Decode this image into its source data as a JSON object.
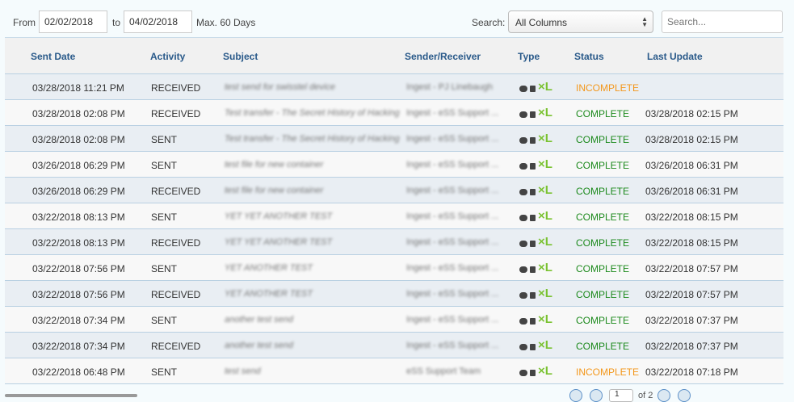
{
  "filter": {
    "from_label": "From",
    "from_value": "02/02/2018",
    "to_label": "to",
    "to_value": "04/02/2018",
    "max_label": "Max. 60 Days",
    "search_label": "Search:",
    "search_column": "All Columns",
    "search_placeholder": "Search..."
  },
  "columns": [
    "Sent Date",
    "Activity",
    "Subject",
    "Sender/Receiver",
    "Type",
    "Status",
    "Last Update"
  ],
  "colors": {
    "header": "#2a5a8a",
    "complete": "#1d8a1d",
    "incomplete": "#f3971b",
    "xl_icon": "#7ac231"
  },
  "rows": [
    {
      "sent": "03/28/2018 11:21 PM",
      "activity": "RECEIVED",
      "subject": "test send for swisstel device",
      "sender": "Ingest - PJ Linebaugh",
      "status": "INCOMPLETE",
      "updated": ""
    },
    {
      "sent": "03/28/2018 02:08 PM",
      "activity": "RECEIVED",
      "subject": "Test transfer - The Secret History of Hacking",
      "sender": "Ingest - eSS Support ...",
      "status": "COMPLETE",
      "updated": "03/28/2018 02:15 PM"
    },
    {
      "sent": "03/28/2018 02:08 PM",
      "activity": "SENT",
      "subject": "Test transfer - The Secret History of Hacking",
      "sender": "Ingest - eSS Support ...",
      "status": "COMPLETE",
      "updated": "03/28/2018 02:15 PM"
    },
    {
      "sent": "03/26/2018 06:29 PM",
      "activity": "SENT",
      "subject": "test file for new container",
      "sender": "Ingest - eSS Support ...",
      "status": "COMPLETE",
      "updated": "03/26/2018 06:31 PM"
    },
    {
      "sent": "03/26/2018 06:29 PM",
      "activity": "RECEIVED",
      "subject": "test file for new container",
      "sender": "Ingest - eSS Support ...",
      "status": "COMPLETE",
      "updated": "03/26/2018 06:31 PM"
    },
    {
      "sent": "03/22/2018 08:13 PM",
      "activity": "SENT",
      "subject": "YET YET ANOTHER TEST",
      "sender": "Ingest - eSS Support ...",
      "status": "COMPLETE",
      "updated": "03/22/2018 08:15 PM"
    },
    {
      "sent": "03/22/2018 08:13 PM",
      "activity": "RECEIVED",
      "subject": "YET YET ANOTHER TEST",
      "sender": "Ingest - eSS Support ...",
      "status": "COMPLETE",
      "updated": "03/22/2018 08:15 PM"
    },
    {
      "sent": "03/22/2018 07:56 PM",
      "activity": "SENT",
      "subject": "YET ANOTHER TEST",
      "sender": "Ingest - eSS Support ...",
      "status": "COMPLETE",
      "updated": "03/22/2018 07:57 PM"
    },
    {
      "sent": "03/22/2018 07:56 PM",
      "activity": "RECEIVED",
      "subject": "YET ANOTHER TEST",
      "sender": "Ingest - eSS Support ...",
      "status": "COMPLETE",
      "updated": "03/22/2018 07:57 PM"
    },
    {
      "sent": "03/22/2018 07:34 PM",
      "activity": "SENT",
      "subject": "another test send",
      "sender": "Ingest - eSS Support ...",
      "status": "COMPLETE",
      "updated": "03/22/2018 07:37 PM"
    },
    {
      "sent": "03/22/2018 07:34 PM",
      "activity": "RECEIVED",
      "subject": "another test send",
      "sender": "Ingest - eSS Support ...",
      "status": "COMPLETE",
      "updated": "03/22/2018 07:37 PM"
    },
    {
      "sent": "03/22/2018 06:48 PM",
      "activity": "SENT",
      "subject": "test send",
      "sender": "eSS Support Team",
      "status": "INCOMPLETE",
      "updated": "03/22/2018 07:18 PM"
    }
  ],
  "type_icons": [
    "chat-icon",
    "lock-icon",
    "xl-icon"
  ],
  "pager": {
    "page": "1",
    "of_label": "of 2"
  }
}
